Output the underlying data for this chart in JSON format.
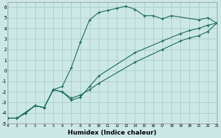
{
  "xlabel": "Humidex (Indice chaleur)",
  "bg_color": "#cce8e6",
  "grid_color": "#b0d0cc",
  "line_color": "#1e6b5e",
  "xlim": [
    0,
    23
  ],
  "ylim": [
    -5,
    6.5
  ],
  "xticks": [
    0,
    1,
    2,
    3,
    4,
    5,
    6,
    7,
    8,
    9,
    10,
    11,
    12,
    13,
    14,
    15,
    16,
    17,
    18,
    19,
    20,
    21,
    22,
    23
  ],
  "yticks": [
    -5,
    -4,
    -3,
    -2,
    -1,
    0,
    1,
    2,
    3,
    4,
    5,
    6
  ],
  "curve1_x": [
    0,
    1,
    3,
    4,
    5,
    6,
    7,
    8,
    9,
    10,
    11,
    12,
    13,
    14,
    15,
    16,
    17,
    18,
    21,
    22,
    23
  ],
  "curve1_y": [
    -4.5,
    -4.5,
    -3.3,
    -3.5,
    -1.8,
    -1.5,
    0.3,
    2.7,
    4.8,
    5.5,
    5.7,
    5.9,
    6.1,
    5.8,
    5.2,
    5.2,
    4.9,
    5.2,
    4.8,
    5.0,
    4.5
  ],
  "curve2_x": [
    0,
    1,
    2,
    3,
    4,
    5,
    6,
    7,
    8,
    9,
    10,
    14,
    17,
    19,
    20,
    21,
    22,
    23
  ],
  "curve2_y": [
    -4.5,
    -4.5,
    -4.0,
    -3.3,
    -3.5,
    -1.8,
    -2.0,
    -2.8,
    -2.5,
    -1.5,
    -0.5,
    1.7,
    2.8,
    3.5,
    3.8,
    4.0,
    4.3,
    4.5
  ],
  "curve3_x": [
    0,
    1,
    2,
    3,
    4,
    5,
    6,
    7,
    8,
    9,
    10,
    14,
    17,
    19,
    20,
    21,
    22,
    23
  ],
  "curve3_y": [
    -4.5,
    -4.5,
    -4.0,
    -3.3,
    -3.5,
    -1.8,
    -2.0,
    -2.6,
    -2.3,
    -1.8,
    -1.2,
    0.8,
    2.0,
    2.8,
    3.1,
    3.3,
    3.7,
    4.5
  ],
  "curve1_markers_x": [
    0,
    1,
    3,
    4,
    5,
    6,
    7,
    8,
    9,
    10,
    11,
    12,
    13,
    14,
    15,
    16,
    17,
    18,
    21,
    22,
    23
  ],
  "curve1_markers_y": [
    -4.5,
    -4.5,
    -3.3,
    -3.5,
    -1.8,
    -1.5,
    0.3,
    2.7,
    4.8,
    5.5,
    5.7,
    5.9,
    6.1,
    5.8,
    5.2,
    5.2,
    4.9,
    5.2,
    4.8,
    5.0,
    4.5
  ]
}
